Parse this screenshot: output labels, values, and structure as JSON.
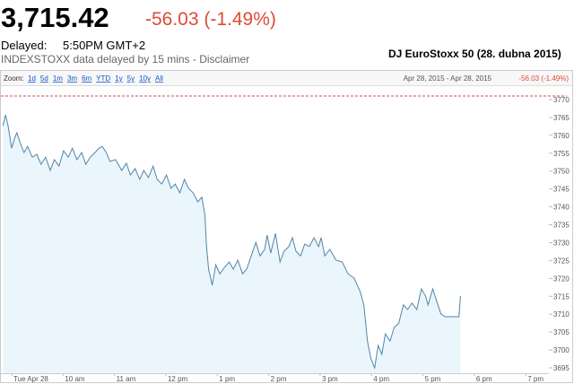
{
  "header": {
    "price": "3,715.42",
    "change": "-56.03 (-1.49%)",
    "delayed_label": "Delayed:",
    "delayed_time": "5:50PM GMT+2",
    "note": "INDEXSTOXX data delayed by 15 mins - Disclaimer"
  },
  "toolbar": {
    "zoom_label": "Zoom:",
    "zoom_options": [
      "1d",
      "5d",
      "1m",
      "3m",
      "6m",
      "YTD",
      "1y",
      "5y",
      "10y",
      "All"
    ],
    "range": "Apr 28, 2015 - Apr 28, 2015",
    "change": "-56.03 (-1.49%)"
  },
  "chart_data": {
    "type": "area",
    "title": "DJ EuroStoxx 50 (28. dubna 2015)",
    "color": "#4f86a8",
    "fill": "#eaf5fc",
    "x": [
      8.83,
      8.88,
      8.93,
      9.0,
      9.05,
      9.1,
      9.17,
      9.24,
      9.31,
      9.4,
      9.49,
      9.57,
      9.66,
      9.75,
      9.83,
      9.92,
      10.01,
      10.1,
      10.18,
      10.27,
      10.36,
      10.44,
      10.53,
      10.62,
      10.7,
      10.76,
      10.84,
      10.91,
      11.02,
      11.14,
      11.23,
      11.31,
      11.4,
      11.49,
      11.57,
      11.66,
      11.75,
      11.83,
      11.92,
      12.01,
      12.1,
      12.18,
      12.27,
      12.36,
      12.44,
      12.53,
      12.62,
      12.7,
      12.76,
      12.79,
      12.83,
      12.9,
      12.97,
      13.05,
      13.14,
      13.23,
      13.31,
      13.4,
      13.49,
      13.57,
      13.66,
      13.75,
      13.83,
      13.92,
      13.97,
      14.04,
      14.13,
      14.22,
      14.3,
      14.39,
      14.46,
      14.53,
      14.62,
      14.7,
      14.79,
      14.88,
      14.97,
      15.02,
      15.09,
      15.19,
      15.31,
      15.43,
      15.54,
      15.66,
      15.78,
      15.85,
      15.92,
      15.99,
      16.06,
      16.13,
      16.2,
      16.27,
      16.36,
      16.44,
      16.53,
      16.62,
      16.7,
      16.79,
      16.88,
      16.97,
      17.05,
      17.1,
      17.19,
      17.28,
      17.35,
      17.43,
      17.7,
      17.73
    ],
    "values": [
      3762.7,
      3765.7,
      3762.7,
      3756.4,
      3758.9,
      3760.7,
      3757.7,
      3755.2,
      3756.9,
      3753.9,
      3754.7,
      3751.9,
      3753.9,
      3750.2,
      3753.2,
      3751.4,
      3755.7,
      3753.9,
      3756.4,
      3753.2,
      3755.2,
      3751.9,
      3753.9,
      3755.2,
      3756.4,
      3756.9,
      3755.2,
      3752.7,
      3753.2,
      3750.2,
      3752.2,
      3748.9,
      3750.7,
      3747.7,
      3750.2,
      3748.2,
      3751.4,
      3747.7,
      3746.4,
      3748.9,
      3745.2,
      3746.4,
      3743.9,
      3747.7,
      3745.2,
      3743.9,
      3741.4,
      3742.7,
      3737.6,
      3728.9,
      3722.6,
      3718.1,
      3723.8,
      3721.3,
      3723.1,
      3724.6,
      3722.6,
      3725.1,
      3721.3,
      3722.6,
      3726.3,
      3730.1,
      3726.3,
      3728.1,
      3732.1,
      3727.1,
      3732.6,
      3724.6,
      3727.6,
      3728.9,
      3731.4,
      3727.6,
      3726.3,
      3729.6,
      3728.9,
      3731.4,
      3728.9,
      3731.4,
      3726.3,
      3728.1,
      3725.1,
      3724.6,
      3721.3,
      3720.1,
      3716.3,
      3712.6,
      3702.5,
      3697.5,
      3695.0,
      3701.3,
      3698.8,
      3704.5,
      3702.5,
      3706.3,
      3707.5,
      3712.6,
      3711.3,
      3713.1,
      3711.3,
      3717.1,
      3715.1,
      3712.6,
      3717.1,
      3713.1,
      3710.1,
      3709.3,
      3709.3,
      3715.1
    ],
    "reference_line": 3771.0,
    "xlim": [
      8.79,
      19.45
    ],
    "ylim": [
      3693.5,
      3773.5
    ],
    "xticks": [
      {
        "value": 9,
        "label": "Tue Apr 28"
      },
      {
        "value": 10,
        "label": "10 am"
      },
      {
        "value": 11,
        "label": "11 am"
      },
      {
        "value": 12,
        "label": "12 pm"
      },
      {
        "value": 13,
        "label": "1 pm"
      },
      {
        "value": 14,
        "label": "2 pm"
      },
      {
        "value": 15,
        "label": "3 pm"
      },
      {
        "value": 16,
        "label": "4 pm"
      },
      {
        "value": 17,
        "label": "5 pm"
      },
      {
        "value": 18,
        "label": "6 pm"
      },
      {
        "value": 19,
        "label": "7 pm"
      }
    ],
    "yticks": [
      3695,
      3700,
      3705,
      3710,
      3715,
      3720,
      3725,
      3730,
      3735,
      3740,
      3745,
      3750,
      3755,
      3760,
      3765,
      3770
    ],
    "grid": false
  }
}
